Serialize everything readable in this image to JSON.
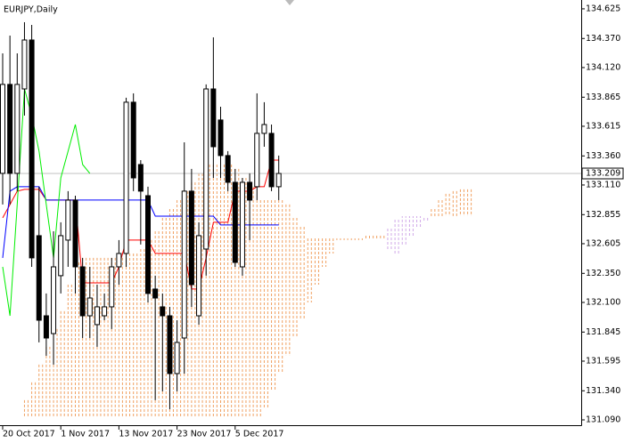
{
  "chart_data": {
    "type": "candlestick",
    "title": "EURJPY,Daily",
    "categories": [
      "20 Oct 2017",
      null,
      null,
      null,
      null,
      null,
      null,
      null,
      "1 Nov 2017",
      null,
      null,
      null,
      null,
      null,
      null,
      null,
      "13 Nov 2017",
      null,
      null,
      null,
      null,
      null,
      null,
      null,
      "23 Nov 2017",
      null,
      null,
      null,
      null,
      null,
      null,
      null,
      "5 Dec 2017",
      null,
      null,
      null,
      null,
      null,
      null,
      null,
      null,
      null,
      null,
      null,
      null,
      null,
      null,
      null,
      null,
      null,
      null,
      null,
      null,
      null,
      null,
      null,
      null,
      null,
      null,
      null,
      null,
      null,
      null,
      null,
      null
    ],
    "open": [
      133.21,
      133.975,
      133.21,
      133.936,
      134.357,
      132.674,
      131.985,
      131.832,
      132.33,
      132.636,
      132.98,
      132.406,
      131.985,
      131.909,
      131.985,
      132.062,
      132.406,
      132.521,
      133.822,
      133.286,
      133.018,
      132.215,
      132.062,
      131.985,
      131.488,
      131.794,
      133.057,
      131.985,
      132.559,
      133.936,
      133.669,
      133.363,
      133.133,
      132.406,
      133.133,
      133.095,
      133.554,
      133.554,
      133.095,
      null,
      null,
      null,
      null,
      null,
      null,
      null,
      null,
      null,
      null,
      null,
      null,
      null,
      null,
      null,
      null,
      null,
      null,
      null,
      null,
      null,
      null,
      null,
      null,
      null,
      null
    ],
    "high": [
      134.242,
      134.395,
      134.242,
      134.51,
      134.487,
      133.095,
      132.177,
      132.712,
      132.789,
      133.057,
      133.018,
      132.483,
      132.406,
      132.253,
      132.177,
      132.483,
      132.636,
      133.86,
      133.898,
      133.324,
      133.095,
      132.33,
      132.177,
      132.062,
      131.947,
      133.477,
      133.248,
      132.789,
      133.975,
      134.38,
      133.783,
      133.401,
      133.248,
      133.171,
      133.21,
      133.898,
      133.822,
      133.63,
      133.363,
      null,
      null,
      null,
      null,
      null,
      null,
      null,
      null,
      null,
      null,
      null,
      null,
      null,
      null,
      null,
      null,
      null,
      null,
      null,
      null,
      null,
      null,
      null,
      null,
      null,
      null
    ],
    "low": [
      132.942,
      132.942,
      133.057,
      133.707,
      132.406,
      131.756,
      131.641,
      131.565,
      132.177,
      132.406,
      132.177,
      131.794,
      131.794,
      131.718,
      131.947,
      131.871,
      132.253,
      132.406,
      133.057,
      132.598,
      132.1,
      131.259,
      131.335,
      131.182,
      131.335,
      131.488,
      132.062,
      131.909,
      132.33,
      133.171,
      133.171,
      133.057,
      132.406,
      132.33,
      132.636,
      132.98,
      133.439,
      133.057,
      132.98,
      null,
      null,
      null,
      null,
      null,
      null,
      null,
      null,
      null,
      null,
      null,
      null,
      null,
      null,
      null,
      null,
      null,
      null,
      null,
      null,
      null,
      null,
      null,
      null,
      null,
      null
    ],
    "close": [
      133.975,
      133.21,
      133.975,
      134.357,
      132.483,
      131.947,
      131.794,
      132.406,
      132.674,
      132.98,
      132.406,
      131.985,
      132.138,
      132.062,
      132.062,
      132.406,
      132.521,
      133.822,
      133.171,
      133.057,
      132.177,
      132.138,
      131.985,
      131.488,
      131.756,
      133.057,
      132.253,
      132.674,
      133.936,
      133.439,
      133.363,
      133.133,
      132.444,
      133.133,
      132.98,
      133.554,
      133.63,
      133.095,
      133.209,
      null,
      null,
      null,
      null,
      null,
      null,
      null,
      null,
      null,
      null,
      null,
      null,
      null,
      null,
      null,
      null,
      null,
      null,
      null,
      null,
      null,
      null,
      null,
      null,
      null,
      null
    ],
    "up_color": "#ffffff",
    "down_color": "#000000",
    "lines": [
      {
        "color": "#ff0000",
        "values": [
          132.827,
          132.942,
          133.057,
          133.072,
          133.072,
          133.072,
          132.98,
          132.98,
          132.98,
          132.98,
          132.98,
          132.268,
          132.268,
          132.268,
          132.268,
          132.268,
          132.406,
          132.636,
          132.636,
          132.636,
          132.636,
          132.521,
          132.521,
          132.521,
          132.521,
          132.521,
          132.215,
          132.215,
          132.483,
          132.789,
          132.789,
          132.789,
          133.057,
          133.057,
          133.057,
          133.095,
          133.095,
          133.324,
          133.324,
          null,
          null,
          null,
          null,
          null,
          null,
          null,
          null,
          null,
          null,
          null,
          null,
          null,
          null,
          null,
          null,
          null,
          null,
          null,
          null,
          null,
          null,
          null,
          null,
          null,
          null
        ]
      },
      {
        "color": "#0000ff",
        "values": [
          132.483,
          133.057,
          133.095,
          133.095,
          133.095,
          133.095,
          132.98,
          132.98,
          132.98,
          132.98,
          132.98,
          132.98,
          132.98,
          132.98,
          132.98,
          132.98,
          132.98,
          132.98,
          132.98,
          132.98,
          132.98,
          132.842,
          132.842,
          132.842,
          132.842,
          132.842,
          132.842,
          132.842,
          132.842,
          132.842,
          132.766,
          132.766,
          132.766,
          132.766,
          132.766,
          132.766,
          132.766,
          132.766,
          132.766,
          null,
          null,
          null,
          null,
          null,
          null,
          null,
          null,
          null,
          null,
          null,
          null,
          null,
          null,
          null,
          null,
          null,
          null,
          null,
          null,
          null,
          null,
          null,
          null,
          null,
          null
        ]
      },
      {
        "color": "#00ee00",
        "values": [
          132.406,
          131.985,
          132.942,
          133.936,
          133.707,
          133.401,
          132.942,
          132.483,
          133.171,
          133.401,
          133.63,
          133.286,
          133.21,
          null,
          null,
          null,
          null,
          null,
          null,
          null,
          null,
          null,
          null,
          null,
          null,
          null,
          null,
          null,
          null,
          null,
          null,
          null,
          null,
          null,
          null,
          null,
          null,
          null,
          null,
          null,
          null,
          null,
          null,
          null,
          null,
          null,
          null,
          null,
          null,
          null,
          null,
          null,
          null,
          null,
          null,
          null,
          null,
          null,
          null,
          null,
          null,
          null,
          null,
          null,
          null
        ]
      }
    ],
    "cloud": {
      "up_color": "#f0a060",
      "down_color": "#d0a8e8",
      "span_a": [
        null,
        null,
        131.106,
        131.259,
        131.412,
        131.565,
        131.718,
        131.871,
        132.024,
        132.253,
        132.444,
        132.483,
        132.483,
        132.483,
        132.483,
        132.483,
        132.483,
        132.521,
        132.521,
        132.559,
        132.636,
        132.712,
        132.827,
        132.903,
        132.98,
        133.057,
        133.133,
        133.21,
        133.286,
        133.286,
        133.286,
        133.286,
        133.248,
        133.171,
        133.095,
        132.98,
        132.98,
        132.98,
        132.98,
        132.942,
        132.827,
        132.75,
        132.651,
        132.651,
        132.651,
        132.651,
        132.651,
        132.651,
        132.651,
        132.651,
        132.674,
        132.674,
        132.674,
        132.559,
        132.521,
        132.598,
        132.674,
        132.75,
        132.804,
        132.903,
        132.98,
        133.034,
        133.057,
        133.072,
        133.072
      ],
      "span_b": [
        null,
        null,
        131.106,
        131.106,
        131.106,
        131.106,
        131.106,
        131.106,
        131.106,
        131.106,
        131.106,
        131.106,
        131.106,
        131.106,
        131.106,
        131.106,
        131.106,
        131.106,
        131.106,
        131.106,
        131.106,
        131.106,
        131.106,
        131.106,
        131.106,
        131.106,
        131.106,
        131.106,
        131.106,
        131.106,
        131.106,
        131.106,
        131.106,
        131.106,
        131.106,
        131.106,
        131.182,
        131.335,
        131.488,
        131.641,
        131.794,
        131.947,
        132.1,
        132.253,
        132.406,
        132.521,
        132.636,
        132.636,
        132.636,
        132.636,
        132.636,
        132.636,
        132.636,
        132.75,
        132.827,
        132.842,
        132.842,
        132.842,
        132.842,
        132.842,
        132.842,
        132.842,
        132.842,
        132.842,
        132.842
      ]
    },
    "current_price": 133.209,
    "ylim": [
      131.044,
      134.701
    ],
    "yticks": [
      134.625,
      {
        "value": 134.37,
        "label": "134.370"
      },
      {
        "value": 134.12,
        "label": "134.120"
      },
      133.865,
      133.615,
      {
        "value": 133.36,
        "label": "133.360"
      },
      {
        "value": 133.11,
        "label": "133.110"
      },
      132.855,
      132.605,
      {
        "value": 132.35,
        "label": "132.350"
      },
      {
        "value": 132.1,
        "label": "132.100"
      },
      131.845,
      131.595,
      {
        "value": 131.34,
        "label": "131.340"
      },
      {
        "value": 131.09,
        "label": "131.090"
      }
    ]
  }
}
